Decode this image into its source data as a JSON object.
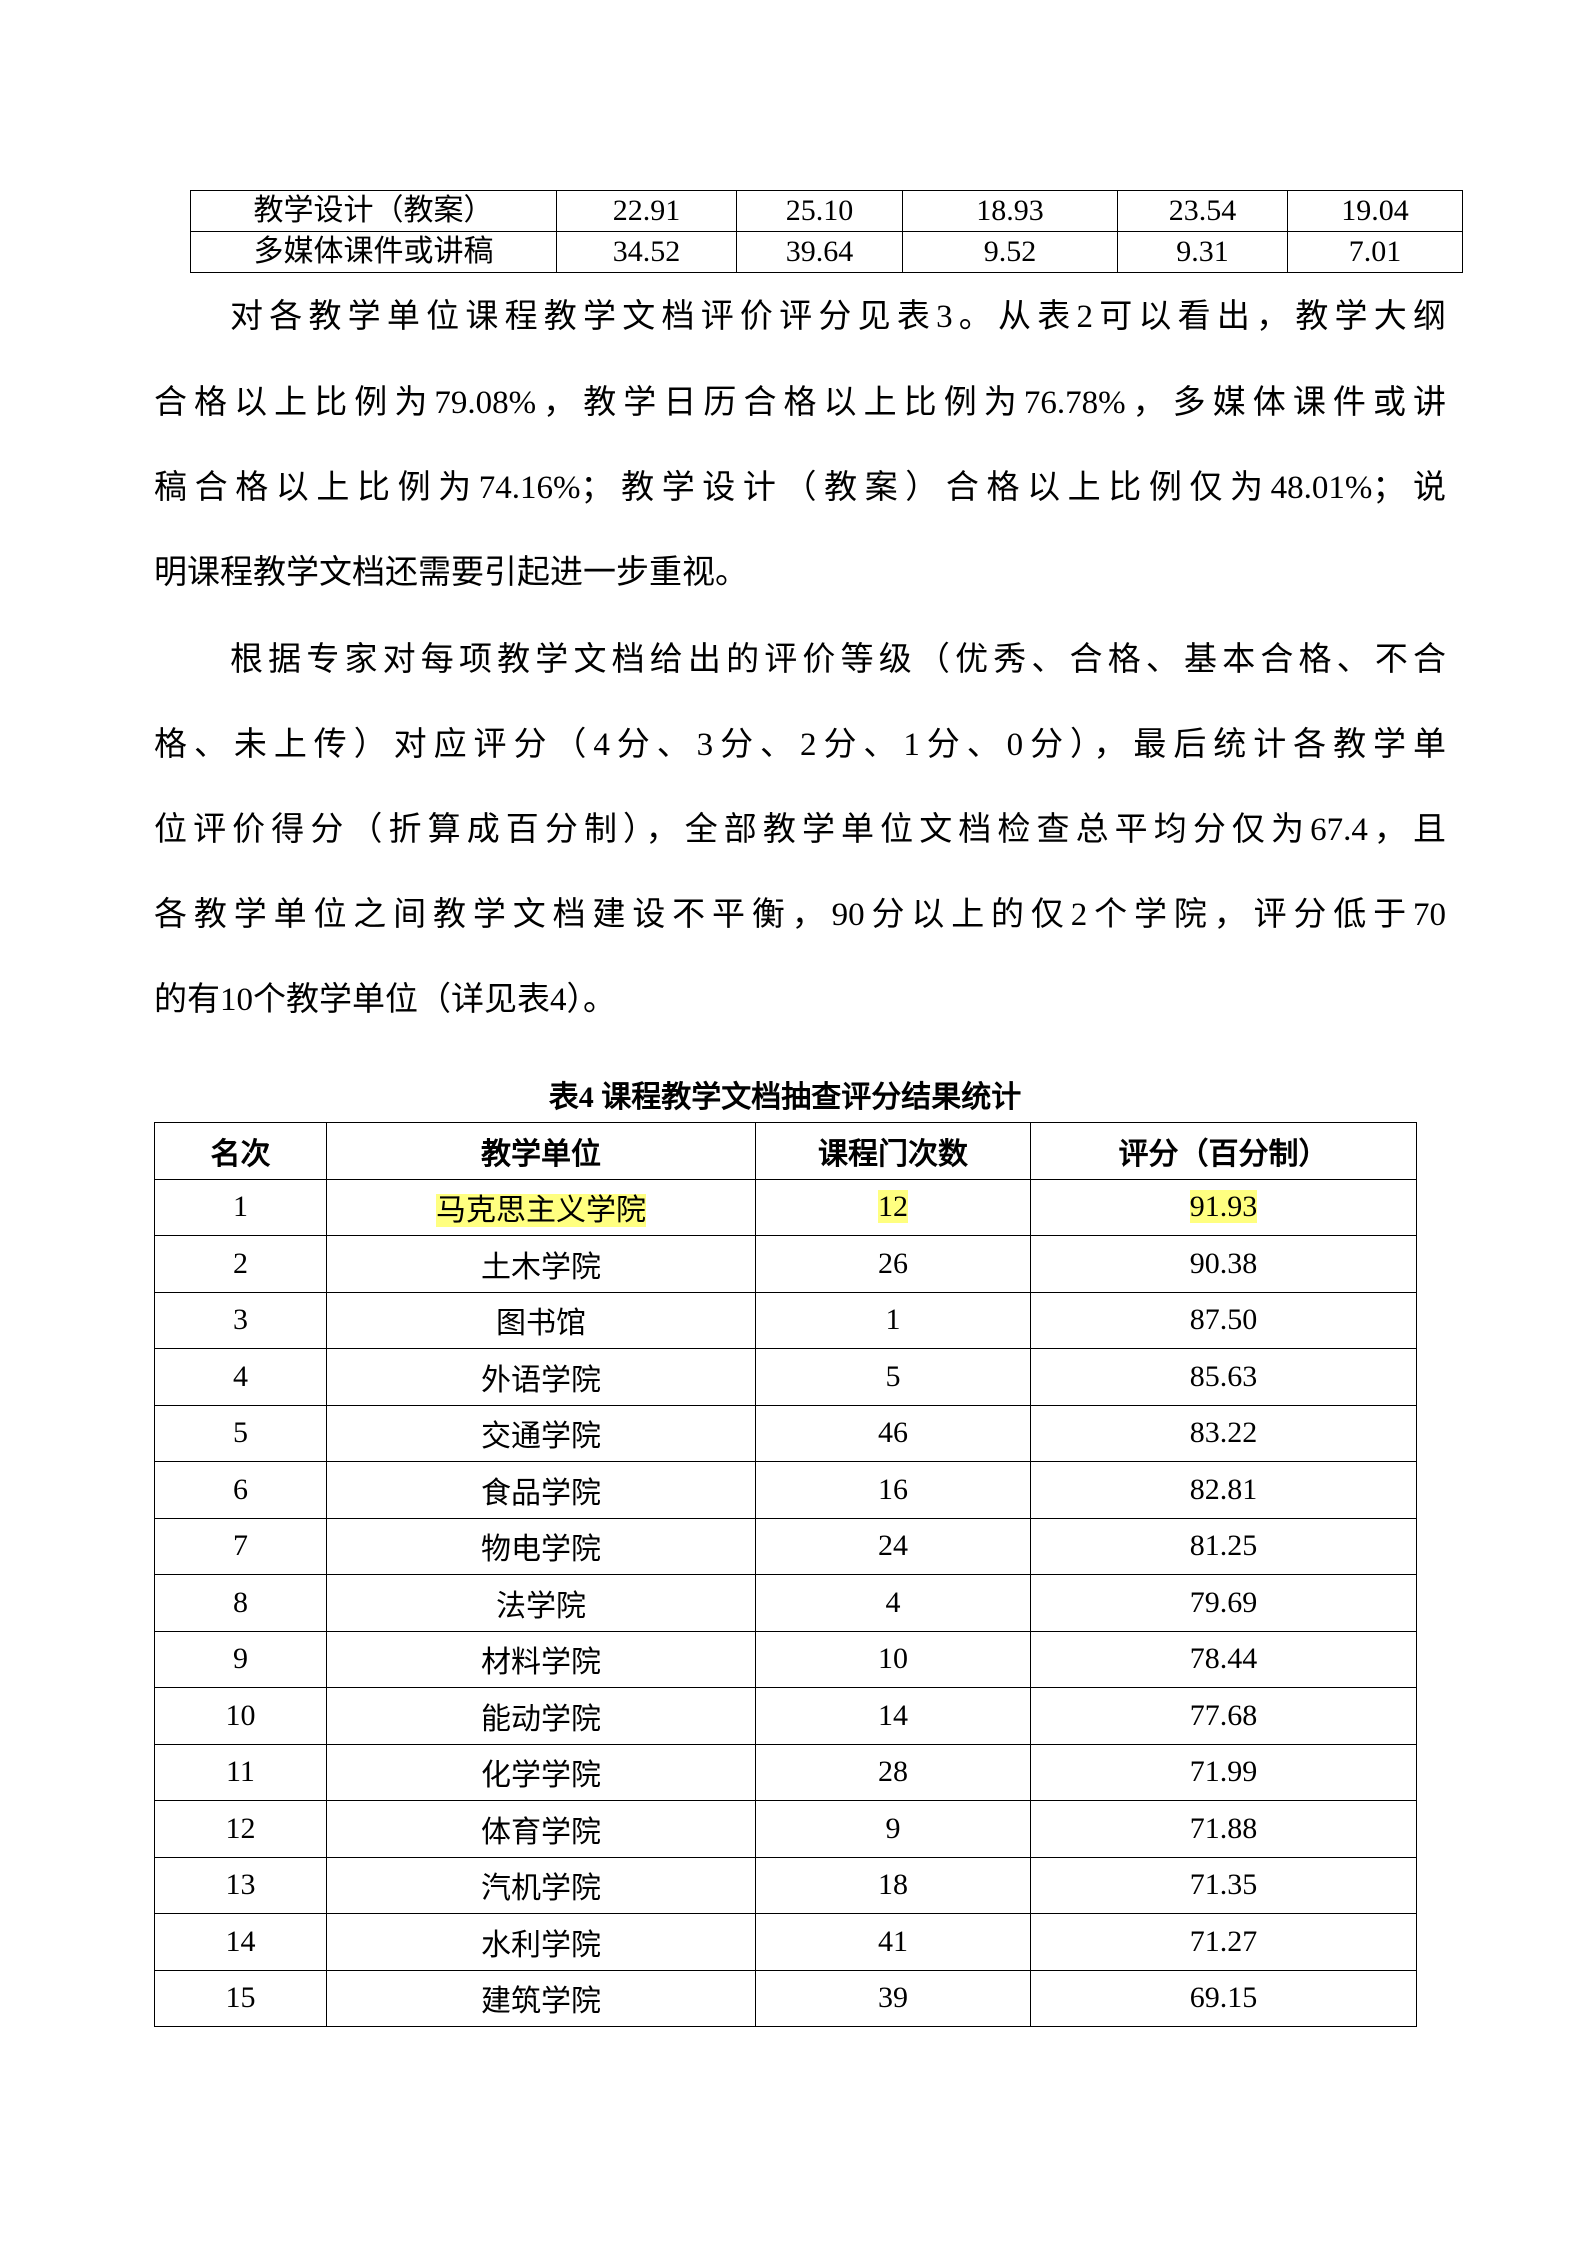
{
  "table3_rows": [
    {
      "label": "教学设计（教案）",
      "values": [
        "22.91",
        "25.10",
        "18.93",
        "23.54",
        "19.04"
      ]
    },
    {
      "label": "多媒体课件或讲稿",
      "values": [
        "34.52",
        "39.64",
        "9.52",
        "9.31",
        "7.01"
      ]
    }
  ],
  "paragraph1": [
    "对各教学单位课程教学文档评价评分见表3。从表2可以看出，教学大纲",
    "合格以上比例为79.08%，教学日历合格以上比例为76.78%，多媒体课件或讲",
    "稿合格以上比例为74.16%；教学设计（教案）合格以上比例仅为48.01%；说",
    "明课程教学文档还需要引起进一步重视。"
  ],
  "paragraph2": [
    "根据专家对每项教学文档给出的评价等级（优秀、合格、基本合格、不合",
    "格、未上传）对应评分（4分、3分、2分、1分、0分），最后统计各教学单",
    "位评价得分（折算成百分制），全部教学单位文档检查总平均分仅为67.4，且",
    "各教学单位之间教学文档建设不平衡，90分以上的仅2个学院，评分低于70",
    "的有10个教学单位（详见表4）。"
  ],
  "table4": {
    "caption": "表4  课程教学文档抽查评分结果统计",
    "headers": [
      "名次",
      "教学单位",
      "课程门次数",
      "评分（百分制）"
    ],
    "highlight_color": "#ffff80",
    "rows": [
      [
        "1",
        "马克思主义学院",
        "12",
        "91.93"
      ],
      [
        "2",
        "土木学院",
        "26",
        "90.38"
      ],
      [
        "3",
        "图书馆",
        "1",
        "87.50"
      ],
      [
        "4",
        "外语学院",
        "5",
        "85.63"
      ],
      [
        "5",
        "交通学院",
        "46",
        "83.22"
      ],
      [
        "6",
        "食品学院",
        "16",
        "82.81"
      ],
      [
        "7",
        "物电学院",
        "24",
        "81.25"
      ],
      [
        "8",
        "法学院",
        "4",
        "79.69"
      ],
      [
        "9",
        "材料学院",
        "10",
        "78.44"
      ],
      [
        "10",
        "能动学院",
        "14",
        "77.68"
      ],
      [
        "11",
        "化学学院",
        "28",
        "71.99"
      ],
      [
        "12",
        "体育学院",
        "9",
        "71.88"
      ],
      [
        "13",
        "汽机学院",
        "18",
        "71.35"
      ],
      [
        "14",
        "水利学院",
        "41",
        "71.27"
      ],
      [
        "15",
        "建筑学院",
        "39",
        "69.15"
      ]
    ]
  }
}
